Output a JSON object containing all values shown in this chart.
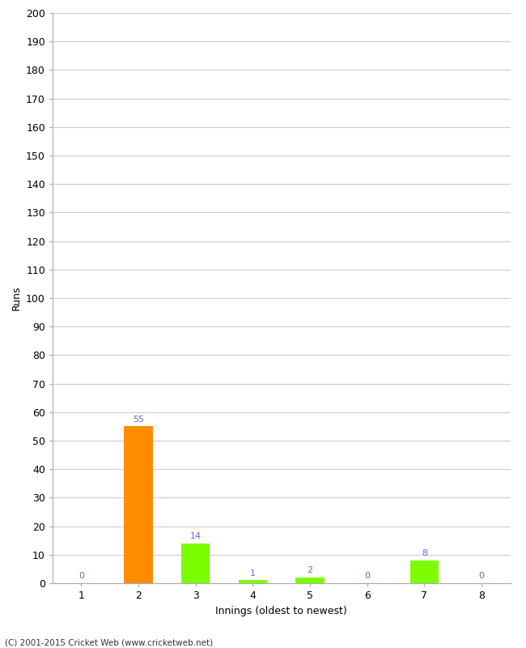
{
  "xlabel": "Innings (oldest to newest)",
  "ylabel": "Runs",
  "categories": [
    1,
    2,
    3,
    4,
    5,
    6,
    7,
    8
  ],
  "values": [
    0,
    55,
    14,
    1,
    2,
    0,
    8,
    0
  ],
  "bar_colors": [
    "#7CFC00",
    "#FF8C00",
    "#7CFC00",
    "#7CFC00",
    "#7CFC00",
    "#7CFC00",
    "#7CFC00",
    "#7CFC00"
  ],
  "ylim": [
    0,
    200
  ],
  "yticks": [
    0,
    10,
    20,
    30,
    40,
    50,
    60,
    70,
    80,
    90,
    100,
    110,
    120,
    130,
    140,
    150,
    160,
    170,
    180,
    190,
    200
  ],
  "label_color": "#6666cc",
  "footer": "(C) 2001-2015 Cricket Web (www.cricketweb.net)",
  "background_color": "#ffffff",
  "plot_bg_color": "#ffffff",
  "grid_color": "#cccccc",
  "bar_width": 0.5
}
